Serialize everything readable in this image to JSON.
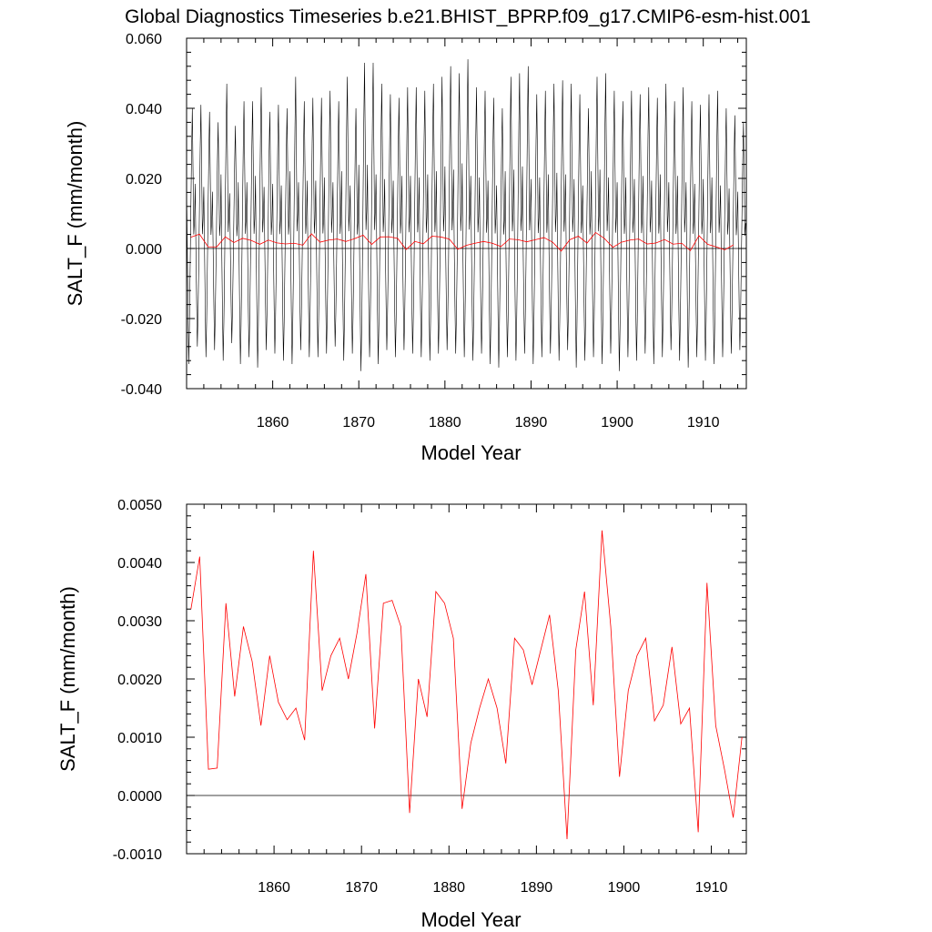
{
  "title": "Global Diagnostics Timeseries b.e21.BHIST_BPRP.f09_g17.CMIP6-esm-hist.001",
  "colors": {
    "monthly": "#000000",
    "annual": "#ff0000",
    "zero_line": "#000000",
    "frame": "#000000"
  },
  "chart_data": [
    {
      "type": "line",
      "xlabel": "Model Year",
      "ylabel": "SALT_F (mm/month)",
      "xlim": [
        1850,
        1915
      ],
      "ylim": [
        -0.04,
        0.06
      ],
      "x_ticks": [
        1860,
        1870,
        1880,
        1890,
        1900,
        1910
      ],
      "x_tick_labels": [
        "1860",
        "1870",
        "1880",
        "1890",
        "1900",
        "1910"
      ],
      "y_ticks": [
        -0.04,
        -0.02,
        0.0,
        0.02,
        0.04,
        0.06
      ],
      "y_tick_labels": [
        "-0.040",
        "-0.020",
        "0.000",
        "0.020",
        "0.040",
        "0.060"
      ],
      "zero_line": true,
      "grid": false,
      "legend": "none",
      "series": [
        {
          "kind": "monthly",
          "x_start": 1850.0,
          "x_step": 0.08333,
          "pattern_note": "",
          "annual_peaks": [
            0.04,
            0.041,
            0.039,
            0.036,
            0.047,
            0.035,
            0.042,
            0.042,
            0.046,
            0.039,
            0.041,
            0.04,
            0.049,
            0.042,
            0.043,
            0.043,
            0.045,
            0.042,
            0.049,
            0.04,
            0.053,
            0.053,
            0.047,
            0.044,
            0.043,
            0.046,
            0.046,
            0.045,
            0.047,
            0.049,
            0.052,
            0.05,
            0.054,
            0.046,
            0.045,
            0.043,
            0.04,
            0.049,
            0.05,
            0.052,
            0.044,
            0.045,
            0.047,
            0.048,
            0.047,
            0.044,
            0.04,
            0.049,
            0.05,
            0.045,
            0.042,
            0.045,
            0.044,
            0.046,
            0.043,
            0.047,
            0.042,
            0.046,
            0.042,
            0.041,
            0.044,
            0.045,
            0.04,
            0.038,
            0.036
          ],
          "annual_troughs": [
            -0.033,
            -0.028,
            -0.031,
            -0.029,
            -0.032,
            -0.027,
            -0.033,
            -0.031,
            -0.034,
            -0.029,
            -0.03,
            -0.032,
            -0.033,
            -0.029,
            -0.031,
            -0.031,
            -0.03,
            -0.028,
            -0.032,
            -0.03,
            -0.035,
            -0.031,
            -0.033,
            -0.029,
            -0.031,
            -0.029,
            -0.03,
            -0.031,
            -0.032,
            -0.03,
            -0.029,
            -0.03,
            -0.031,
            -0.032,
            -0.03,
            -0.033,
            -0.034,
            -0.031,
            -0.032,
            -0.03,
            -0.033,
            -0.031,
            -0.03,
            -0.032,
            -0.029,
            -0.034,
            -0.032,
            -0.031,
            -0.033,
            -0.03,
            -0.035,
            -0.031,
            -0.032,
            -0.03,
            -0.033,
            -0.031,
            -0.029,
            -0.032,
            -0.034,
            -0.031,
            -0.032,
            -0.033,
            -0.031,
            -0.03,
            -0.029
          ]
        },
        {
          "kind": "annual",
          "x": [
            1850.5,
            1851.5,
            1852.5,
            1853.5,
            1854.5,
            1855.5,
            1856.5,
            1857.5,
            1858.5,
            1859.5,
            1860.5,
            1861.5,
            1862.5,
            1863.5,
            1864.5,
            1865.5,
            1866.5,
            1867.5,
            1868.5,
            1869.5,
            1870.5,
            1871.5,
            1872.5,
            1873.5,
            1874.5,
            1875.5,
            1876.5,
            1877.5,
            1878.5,
            1879.5,
            1880.5,
            1881.5,
            1882.5,
            1883.5,
            1884.5,
            1885.5,
            1886.5,
            1887.5,
            1888.5,
            1889.5,
            1890.5,
            1891.5,
            1892.5,
            1893.5,
            1894.5,
            1895.5,
            1896.5,
            1897.5,
            1898.5,
            1899.5,
            1900.5,
            1901.5,
            1902.5,
            1903.5,
            1904.5,
            1905.5,
            1906.5,
            1907.5,
            1908.5,
            1909.5,
            1910.5,
            1911.5,
            1912.5,
            1913.5
          ],
          "y": [
            0.0032,
            0.0041,
            0.00045,
            0.00047,
            0.0033,
            0.0017,
            0.0029,
            0.0023,
            0.0012,
            0.0024,
            0.0016,
            0.0013,
            0.0015,
            0.00095,
            0.0042,
            0.0018,
            0.0024,
            0.0027,
            0.002,
            0.0028,
            0.0038,
            0.00115,
            0.0033,
            0.00335,
            0.0029,
            -0.0003,
            0.002,
            0.00135,
            0.0035,
            0.0033,
            0.0027,
            -0.00023,
            0.0009,
            0.0015,
            0.002,
            0.0015,
            0.00055,
            0.0027,
            0.0025,
            0.0019,
            0.0025,
            0.0031,
            0.0018,
            -0.00075,
            0.0025,
            0.0035,
            0.00155,
            0.00455,
            0.0029,
            0.00032,
            0.0018,
            0.0024,
            0.0027,
            0.00128,
            0.00155,
            0.00255,
            0.00123,
            0.0015,
            -0.00063,
            0.00365,
            0.0012,
            0.00045,
            -0.00038,
            0.001
          ]
        }
      ]
    },
    {
      "type": "line",
      "xlabel": "Model Year",
      "ylabel": "SALT_F (mm/month)",
      "xlim": [
        1850,
        1914
      ],
      "ylim": [
        -0.001,
        0.005
      ],
      "x_ticks": [
        1860,
        1870,
        1880,
        1890,
        1900,
        1910
      ],
      "x_tick_labels": [
        "1860",
        "1870",
        "1880",
        "1890",
        "1900",
        "1910"
      ],
      "y_ticks": [
        -0.001,
        0.0,
        0.001,
        0.002,
        0.003,
        0.004,
        0.005
      ],
      "y_tick_labels": [
        "-0.0010",
        "0.0000",
        "0.0010",
        "0.0020",
        "0.0030",
        "0.0040",
        "0.0050"
      ],
      "zero_line": true,
      "grid": false,
      "legend": "none",
      "series": [
        {
          "kind": "annual",
          "x": [
            1850.5,
            1851.5,
            1852.5,
            1853.5,
            1854.5,
            1855.5,
            1856.5,
            1857.5,
            1858.5,
            1859.5,
            1860.5,
            1861.5,
            1862.5,
            1863.5,
            1864.5,
            1865.5,
            1866.5,
            1867.5,
            1868.5,
            1869.5,
            1870.5,
            1871.5,
            1872.5,
            1873.5,
            1874.5,
            1875.5,
            1876.5,
            1877.5,
            1878.5,
            1879.5,
            1880.5,
            1881.5,
            1882.5,
            1883.5,
            1884.5,
            1885.5,
            1886.5,
            1887.5,
            1888.5,
            1889.5,
            1890.5,
            1891.5,
            1892.5,
            1893.5,
            1894.5,
            1895.5,
            1896.5,
            1897.5,
            1898.5,
            1899.5,
            1900.5,
            1901.5,
            1902.5,
            1903.5,
            1904.5,
            1905.5,
            1906.5,
            1907.5,
            1908.5,
            1909.5,
            1910.5,
            1911.5,
            1912.5,
            1913.5
          ],
          "y": [
            0.0032,
            0.0041,
            0.00045,
            0.00047,
            0.0033,
            0.0017,
            0.0029,
            0.0023,
            0.0012,
            0.0024,
            0.0016,
            0.0013,
            0.0015,
            0.00095,
            0.0042,
            0.0018,
            0.0024,
            0.0027,
            0.002,
            0.0028,
            0.0038,
            0.00115,
            0.0033,
            0.00335,
            0.0029,
            -0.0003,
            0.002,
            0.00135,
            0.0035,
            0.0033,
            0.0027,
            -0.00023,
            0.0009,
            0.0015,
            0.002,
            0.0015,
            0.00055,
            0.0027,
            0.0025,
            0.0019,
            0.0025,
            0.0031,
            0.0018,
            -0.00075,
            0.0025,
            0.0035,
            0.00155,
            0.00455,
            0.0029,
            0.00032,
            0.0018,
            0.0024,
            0.0027,
            0.00128,
            0.00155,
            0.00255,
            0.00123,
            0.0015,
            -0.00063,
            0.00365,
            0.0012,
            0.00045,
            -0.00038,
            0.001
          ]
        }
      ]
    }
  ]
}
